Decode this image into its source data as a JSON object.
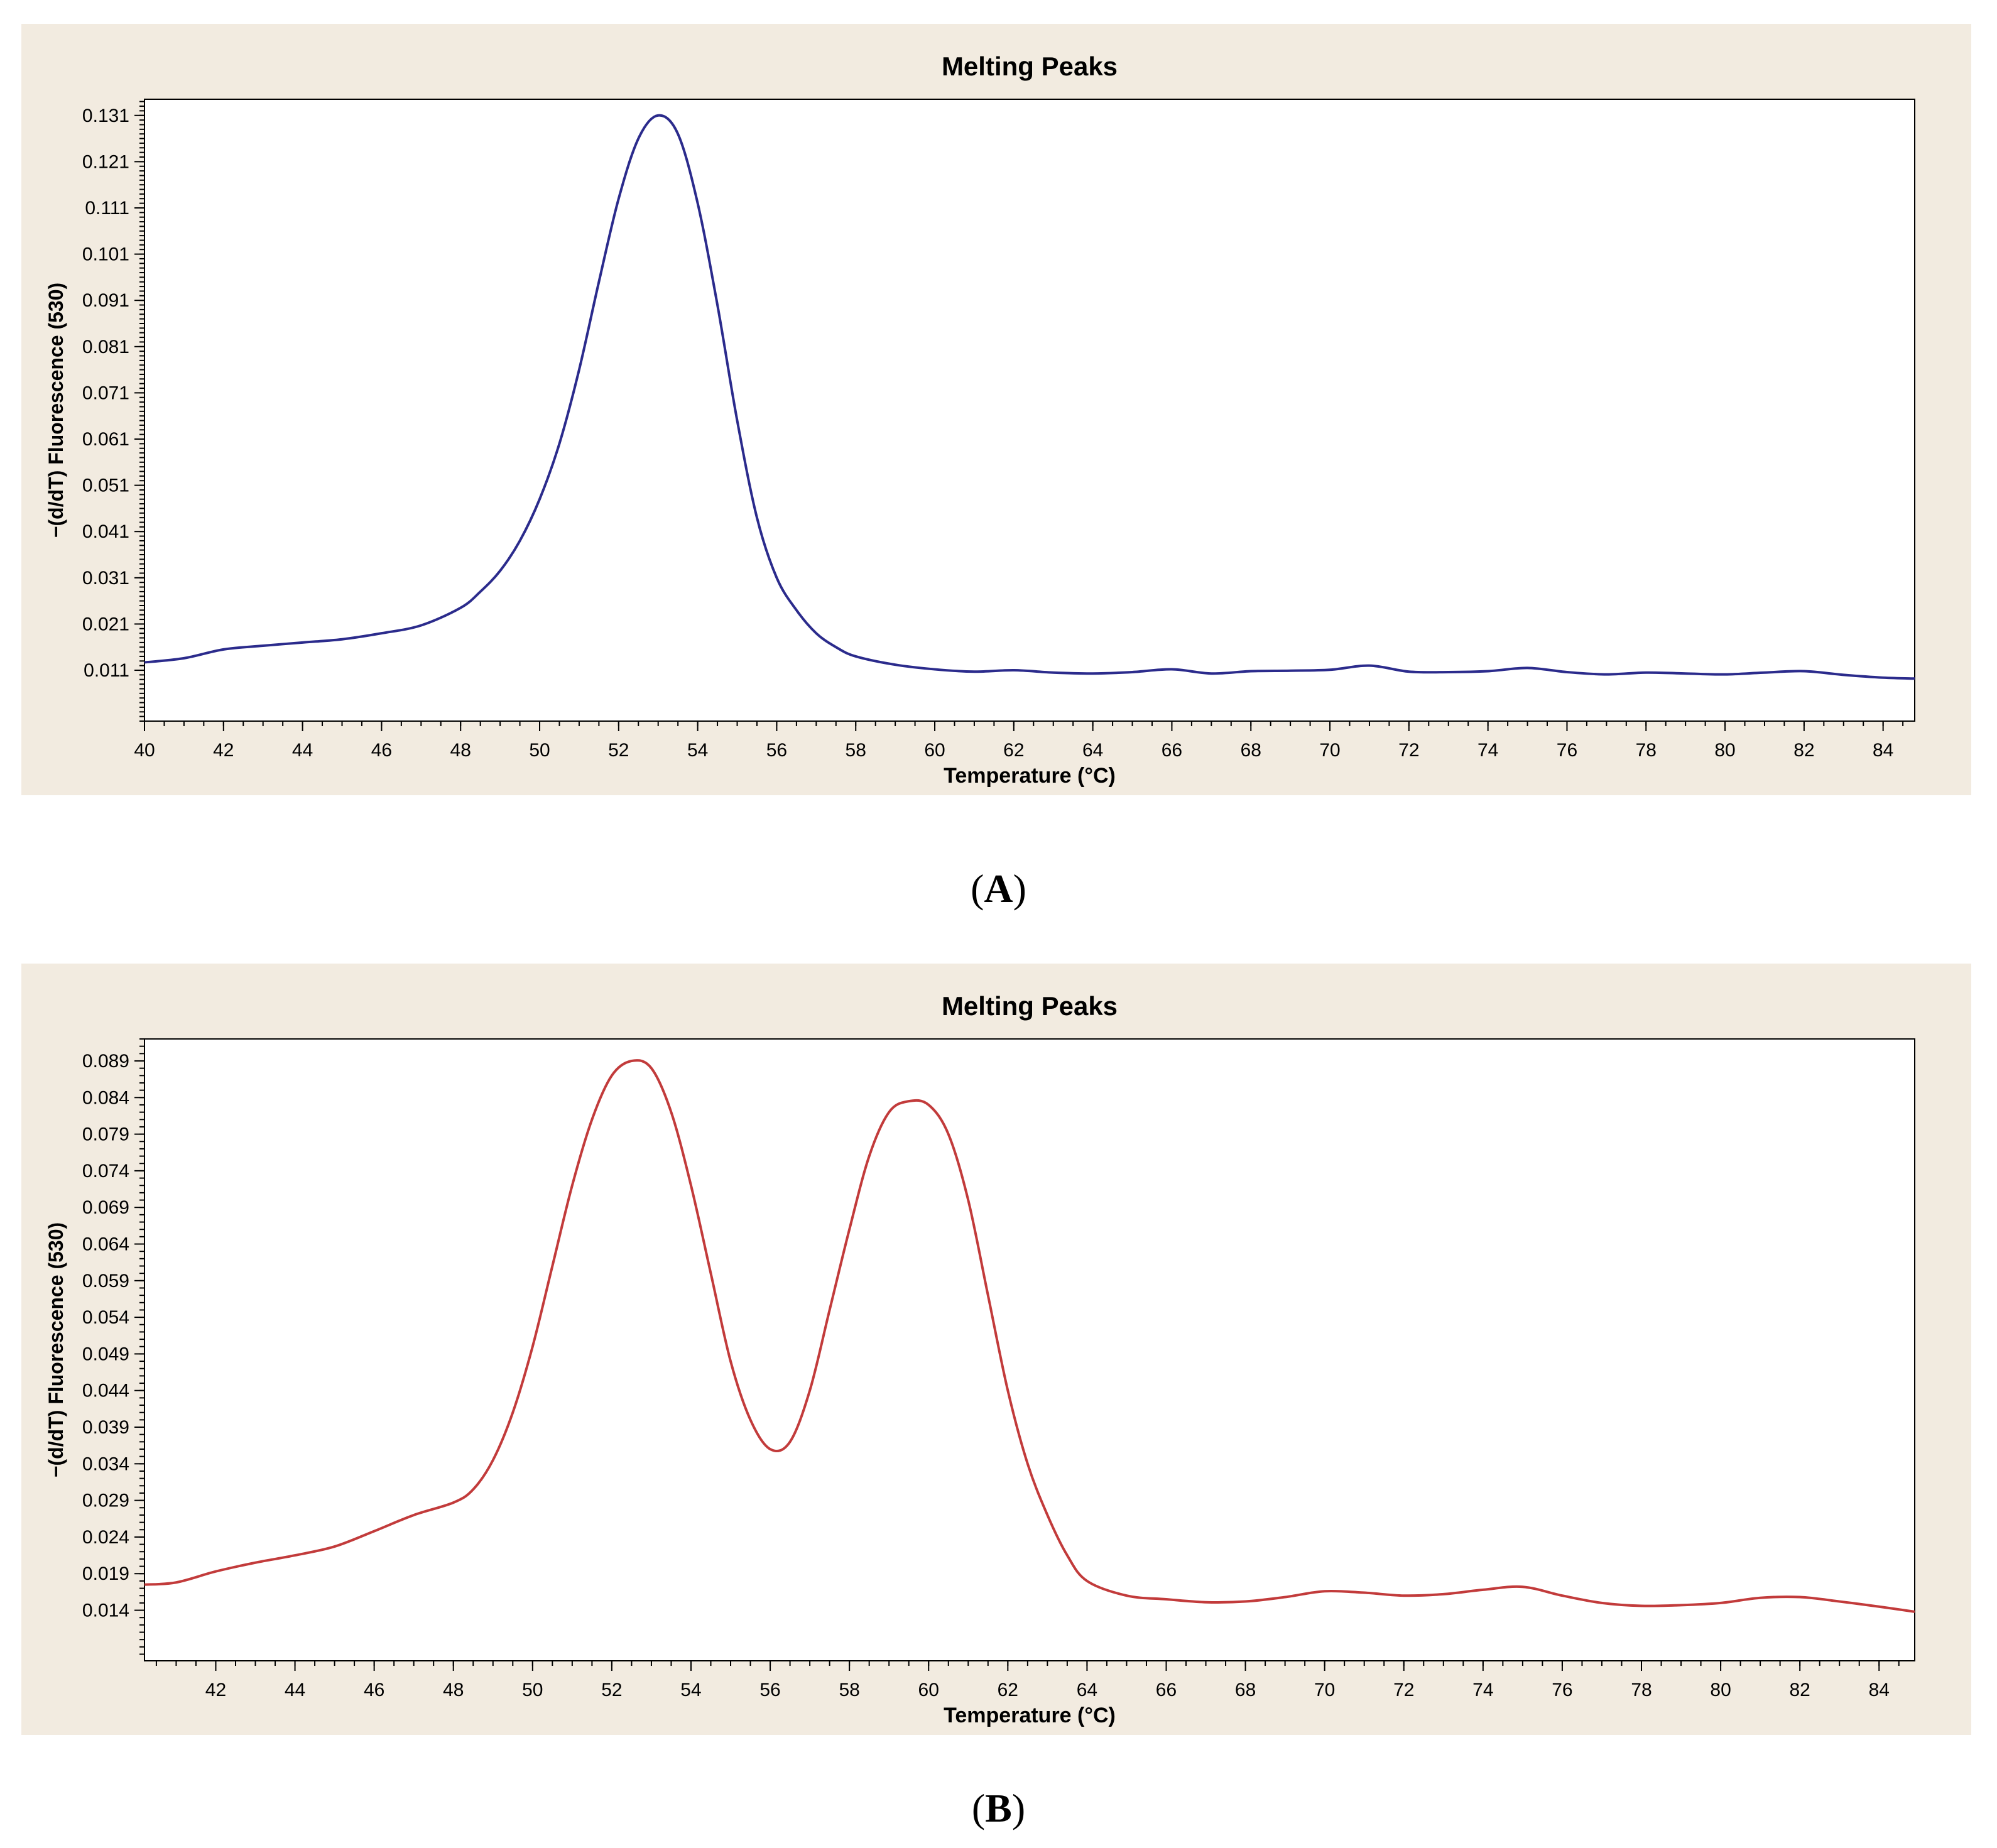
{
  "colors": {
    "panel_bg": "#f2ebe0",
    "plot_bg": "#ffffff",
    "series_a": "#2b2b8c",
    "series_b": "#c23b3b"
  },
  "captions": {
    "a_letter": "A",
    "b_letter": "B",
    "open": "(",
    "close": ")"
  },
  "chart_data": [
    {
      "type": "line",
      "title": "Melting Peaks",
      "xlabel": "Temperature (°C)",
      "ylabel": "−(d/dT) Fluorescence (530)",
      "xlim": [
        40,
        84.8
      ],
      "ylim": [
        0.0,
        0.1345
      ],
      "xticks": [
        40,
        42,
        44,
        46,
        48,
        50,
        52,
        54,
        56,
        58,
        60,
        62,
        64,
        66,
        68,
        70,
        72,
        74,
        76,
        78,
        80,
        82,
        84
      ],
      "yticks": [
        0.011,
        0.021,
        0.031,
        0.041,
        0.051,
        0.061,
        0.071,
        0.081,
        0.091,
        0.101,
        0.111,
        0.121,
        0.131
      ],
      "ytick_labels": [
        "0.011",
        "0.021",
        "0.031",
        "0.041",
        "0.051",
        "0.061",
        "0.071",
        "0.081",
        "0.091",
        "0.101",
        "0.111",
        "0.121",
        "0.131"
      ],
      "grid": false,
      "series": [
        {
          "color": "#2b2b8c",
          "x": [
            40,
            41,
            42,
            43,
            44,
            45,
            46,
            47,
            48,
            48.5,
            49,
            49.5,
            50,
            50.5,
            51,
            51.5,
            52,
            52.5,
            53,
            53.5,
            54,
            54.5,
            55,
            55.5,
            56,
            56.5,
            57,
            57.5,
            58,
            59,
            60,
            61,
            62,
            63,
            64,
            65,
            66,
            67,
            68,
            69,
            70,
            71,
            72,
            73,
            74,
            75,
            76,
            77,
            78,
            79,
            80,
            81,
            82,
            83,
            84,
            84.8
          ],
          "y": [
            0.0127,
            0.0136,
            0.0155,
            0.0163,
            0.017,
            0.0177,
            0.019,
            0.0207,
            0.0245,
            0.028,
            0.0325,
            0.039,
            0.048,
            0.06,
            0.076,
            0.095,
            0.113,
            0.126,
            0.131,
            0.127,
            0.112,
            0.09,
            0.065,
            0.044,
            0.031,
            0.024,
            0.019,
            0.016,
            0.014,
            0.0122,
            0.0112,
            0.0107,
            0.011,
            0.0105,
            0.0103,
            0.0106,
            0.0112,
            0.0103,
            0.0108,
            0.0109,
            0.0111,
            0.012,
            0.0107,
            0.0106,
            0.0108,
            0.0115,
            0.0106,
            0.0101,
            0.0105,
            0.0103,
            0.0101,
            0.0105,
            0.0108,
            0.01,
            0.0094,
            0.0092
          ]
        }
      ]
    },
    {
      "type": "line",
      "title": "Melting Peaks",
      "xlabel": "Temperature (°C)",
      "ylabel": "−(d/dT) Fluorescence (530)",
      "xlim": [
        40.2,
        84.9
      ],
      "ylim": [
        0.0071,
        0.092
      ],
      "xticks": [
        42,
        44,
        46,
        48,
        50,
        52,
        54,
        56,
        58,
        60,
        62,
        64,
        66,
        68,
        70,
        72,
        74,
        76,
        78,
        80,
        82,
        84
      ],
      "yticks": [
        0.014,
        0.019,
        0.024,
        0.029,
        0.034,
        0.039,
        0.044,
        0.049,
        0.054,
        0.059,
        0.064,
        0.069,
        0.074,
        0.079,
        0.084,
        0.089
      ],
      "ytick_labels": [
        "0.014",
        "0.019",
        "0.024",
        "0.029",
        "0.034",
        "0.039",
        "0.044",
        "0.049",
        "0.054",
        "0.059",
        "0.064",
        "0.069",
        "0.074",
        "0.079",
        "0.084",
        "0.089"
      ],
      "grid": false,
      "series": [
        {
          "color": "#c23b3b",
          "x": [
            40.2,
            41,
            42,
            43,
            44,
            45,
            46,
            47,
            48,
            48.5,
            49,
            49.5,
            50,
            50.5,
            51,
            51.5,
            52,
            52.5,
            53,
            53.5,
            54,
            54.5,
            55,
            55.5,
            56,
            56.5,
            57,
            57.5,
            58,
            58.5,
            59,
            59.5,
            60,
            60.5,
            61,
            61.5,
            62,
            62.5,
            63,
            63.5,
            64,
            65,
            66,
            67,
            68,
            69,
            70,
            71,
            72,
            73,
            74,
            75,
            76,
            77,
            78,
            79,
            80,
            81,
            82,
            83,
            84,
            84.9
          ],
          "y": [
            0.0175,
            0.0178,
            0.0193,
            0.0205,
            0.0215,
            0.0227,
            0.0248,
            0.027,
            0.0287,
            0.0305,
            0.0345,
            0.041,
            0.05,
            0.061,
            0.072,
            0.081,
            0.087,
            0.089,
            0.088,
            0.082,
            0.072,
            0.06,
            0.048,
            0.04,
            0.036,
            0.037,
            0.044,
            0.055,
            0.066,
            0.076,
            0.082,
            0.0835,
            0.083,
            0.079,
            0.07,
            0.057,
            0.044,
            0.034,
            0.027,
            0.0215,
            0.018,
            0.016,
            0.0155,
            0.0151,
            0.0152,
            0.0158,
            0.0166,
            0.0164,
            0.016,
            0.0162,
            0.0168,
            0.0172,
            0.016,
            0.015,
            0.0146,
            0.0147,
            0.015,
            0.0157,
            0.0158,
            0.0152,
            0.0145,
            0.0138
          ]
        }
      ]
    }
  ]
}
